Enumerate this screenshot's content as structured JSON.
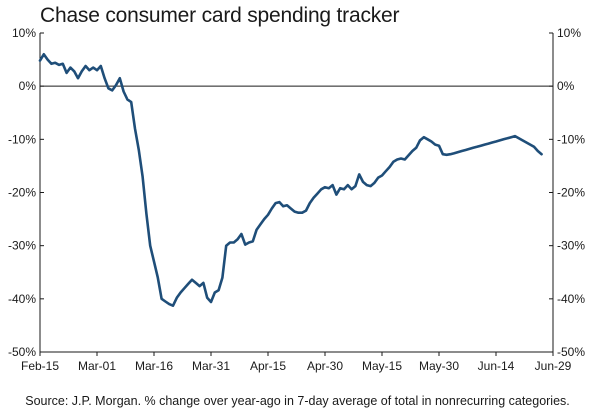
{
  "title": "Chase consumer card spending tracker",
  "source": "Source: J.P. Morgan. % change over year-ago in 7-day average of total in nonrecurring categories.",
  "colors": {
    "line": "#1f4e79",
    "axis": "#1a1a1a"
  },
  "chart_data": {
    "type": "line",
    "title": "Chase consumer card spending tracker",
    "xlabel": "",
    "ylabel": "",
    "x_ticks": [
      "Feb-15",
      "Mar-01",
      "Mar-16",
      "Mar-31",
      "Apr-15",
      "Apr-30",
      "May-15",
      "May-30",
      "Jun-14",
      "Jun-29"
    ],
    "x_tick_day": [
      0,
      15,
      30,
      45,
      60,
      75,
      90,
      105,
      120,
      135
    ],
    "y_ticks": [
      "10%",
      "0%",
      "-10%",
      "-20%",
      "-30%",
      "-40%",
      "-50%"
    ],
    "y_tick_values": [
      10,
      0,
      -10,
      -20,
      -30,
      -40,
      -50
    ],
    "ylim": [
      -50,
      10
    ],
    "xlim": [
      0,
      135
    ],
    "zero_line": true,
    "grid": false,
    "series": [
      {
        "name": "",
        "x": [
          0,
          1,
          2,
          3,
          4,
          5,
          6,
          7,
          8,
          9,
          10,
          11,
          12,
          13,
          14,
          15,
          16,
          17,
          18,
          19,
          20,
          21,
          22,
          23,
          24,
          25,
          26,
          27,
          28,
          29,
          30,
          31,
          32,
          33,
          34,
          35,
          36,
          37,
          38,
          39,
          40,
          41,
          42,
          43,
          44,
          45,
          46,
          47,
          48,
          49,
          50,
          51,
          52,
          53,
          54,
          55,
          56,
          57,
          58,
          59,
          60,
          61,
          62,
          63,
          64,
          65,
          66,
          67,
          68,
          69,
          70,
          71,
          72,
          73,
          74,
          75,
          76,
          77,
          78,
          79,
          80,
          81,
          82,
          83,
          84,
          85,
          86,
          87,
          88,
          89,
          90,
          91,
          92,
          93,
          94,
          95,
          96,
          97,
          98,
          99,
          100,
          101,
          102,
          103,
          104,
          105,
          106,
          107,
          108,
          109,
          110,
          111,
          112,
          113,
          114,
          115,
          116,
          117,
          118,
          119,
          120,
          121,
          122,
          123,
          124,
          125,
          126,
          127,
          128,
          129,
          130,
          131,
          132
        ],
        "values": [
          4.8,
          6.0,
          5.0,
          4.2,
          4.4,
          4.0,
          4.2,
          2.5,
          3.5,
          2.8,
          1.5,
          2.8,
          3.8,
          3.0,
          3.5,
          3.0,
          3.8,
          1.5,
          -0.4,
          -0.8,
          0.2,
          1.5,
          -1.0,
          -2.5,
          -3.0,
          -8.0,
          -12.0,
          -17.0,
          -24.0,
          -30.0,
          -33.0,
          -36.0,
          -40.0,
          -40.5,
          -41.0,
          -41.3,
          -39.8,
          -38.8,
          -38.0,
          -37.2,
          -36.4,
          -37.0,
          -37.6,
          -37.0,
          -39.8,
          -40.6,
          -38.8,
          -38.4,
          -36.0,
          -30.0,
          -29.4,
          -29.4,
          -28.8,
          -27.8,
          -29.8,
          -29.4,
          -29.2,
          -27.0,
          -26.0,
          -25.0,
          -24.2,
          -23.0,
          -22.0,
          -21.8,
          -22.6,
          -22.4,
          -23.0,
          -23.6,
          -23.8,
          -23.8,
          -23.4,
          -22.0,
          -21.0,
          -20.2,
          -19.4,
          -19.0,
          -19.2,
          -18.6,
          -20.4,
          -19.2,
          -19.4,
          -18.6,
          -19.4,
          -18.8,
          -16.6,
          -18.0,
          -18.6,
          -18.8,
          -18.2,
          -17.2,
          -16.8,
          -16.0,
          -15.2,
          -14.2,
          -13.8,
          -13.6,
          -13.8,
          -13.0,
          -12.2,
          -11.6,
          -10.2,
          -9.6,
          -10.0,
          -10.4,
          -11.0,
          -11.2,
          -12.8,
          -12.9,
          -12.8,
          -12.6,
          -12.4,
          -12.2,
          -12.0,
          -11.8,
          -11.6,
          -11.4,
          -11.2,
          -11.0,
          -10.8,
          -10.6,
          -10.4,
          -10.2,
          -10.0,
          -9.8,
          -9.6,
          -9.4,
          -9.8,
          -10.2,
          -10.6,
          -11.0,
          -11.4,
          -12.2,
          -12.8
        ]
      }
    ]
  }
}
